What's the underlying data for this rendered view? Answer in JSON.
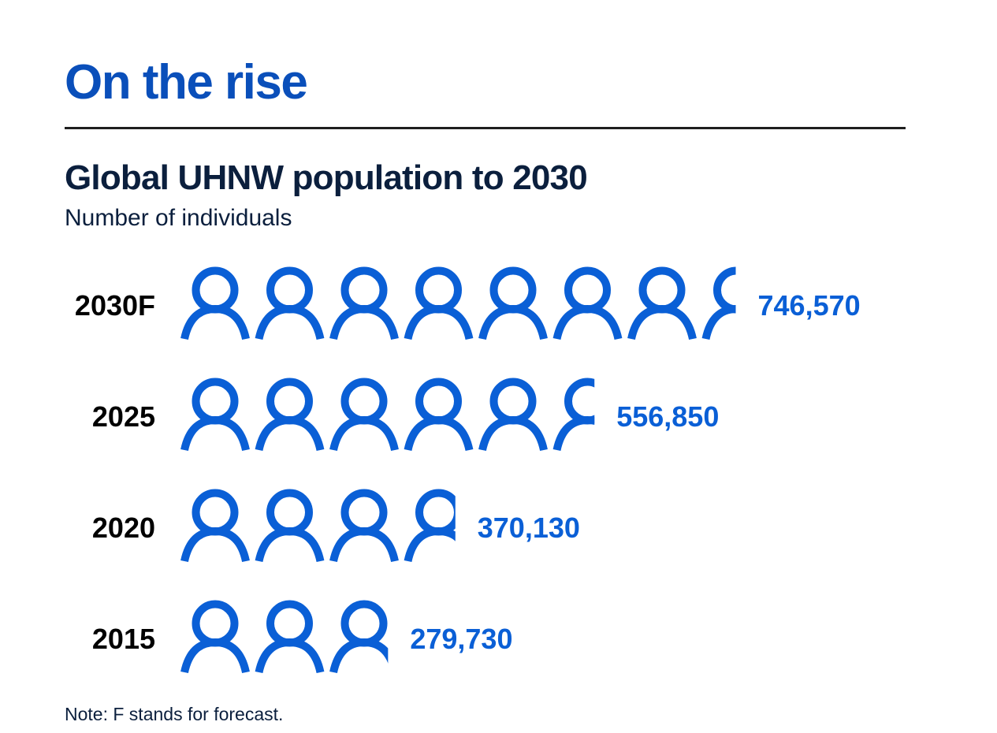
{
  "title": "On the rise",
  "chart_data": {
    "type": "pictogram",
    "title": "Global UHNW population to 2030",
    "subtitle": "Number of individuals",
    "note": "Note: F stands for forecast.",
    "unit_per_icon": 100000,
    "color": "#0a5fd6",
    "label_color": "#000000",
    "categories": [
      "2030F",
      "2025",
      "2020",
      "2015"
    ],
    "values": [
      746570,
      556850,
      370130,
      279730
    ],
    "value_labels": [
      "746,570",
      "556,850",
      "370,130",
      "279,730"
    ]
  }
}
